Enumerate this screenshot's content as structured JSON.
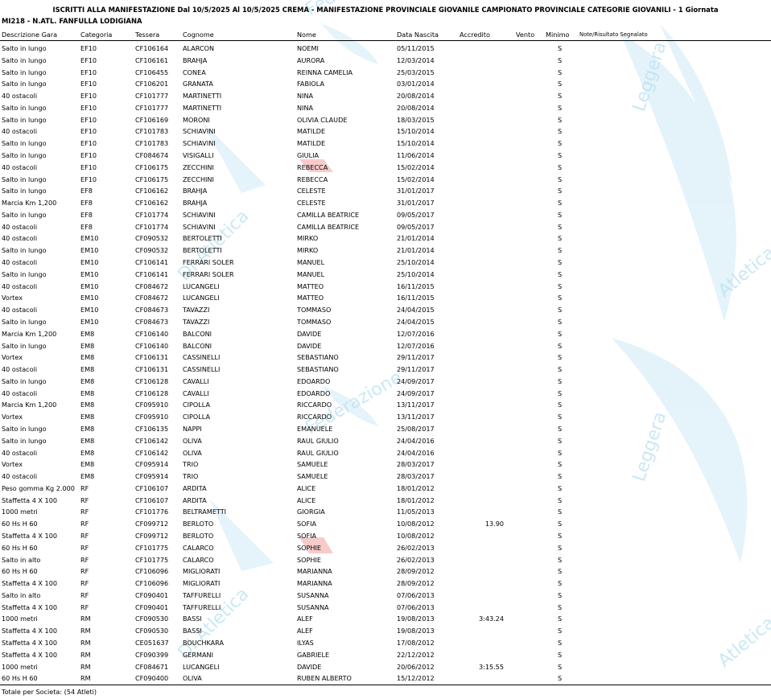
{
  "title": "ISCRITTI ALLA MANIFESTAZIONE Dal 10/5/2025 Al 10/5/2025 CREMA - MANIFESTAZIONE PROVINCIALE GIOVANILE CAMPIONATO PROVINCIALE CATEGORIE GIOVANILI - 1 Giornata",
  "club": "MI218 - N.ATL. FANFULLA LODIGIANA",
  "watermark_texts": [
    "Leggera",
    "Di Atletica",
    "Federazione",
    "Atletica",
    "Leggera",
    "Di Atletica",
    "Federazione",
    "Atletica"
  ],
  "columns": {
    "desc": "Descrizione Gara",
    "cat": "Categoria",
    "tess": "Tessera",
    "cogn": "Cognome",
    "nome": "Nome",
    "data": "Data Nascita",
    "accr": "Accredito",
    "vento": "Vento",
    "min": "Minimo",
    "note": "Note/Risultato Segnalato"
  },
  "rows": [
    {
      "desc": "Salto in lungo",
      "cat": "EF10",
      "tess": "CF106164",
      "cogn": "ALARCON",
      "nome": "NOEMI",
      "data": "05/11/2015",
      "accr": "",
      "vento": "",
      "min": "S"
    },
    {
      "desc": "Salto in lungo",
      "cat": "EF10",
      "tess": "CF106161",
      "cogn": "BRAHJA",
      "nome": "AURORA",
      "data": "12/03/2014",
      "accr": "",
      "vento": "",
      "min": "S"
    },
    {
      "desc": "Salto in lungo",
      "cat": "EF10",
      "tess": "CF106455",
      "cogn": "CONEA",
      "nome": "REINNA CAMELIA",
      "data": "25/03/2015",
      "accr": "",
      "vento": "",
      "min": "S"
    },
    {
      "desc": "Salto in lungo",
      "cat": "EF10",
      "tess": "CF106201",
      "cogn": "GRANATA",
      "nome": "FABIOLA",
      "data": "03/01/2014",
      "accr": "",
      "vento": "",
      "min": "S"
    },
    {
      "desc": "40 ostacoli",
      "cat": "EF10",
      "tess": "CF101777",
      "cogn": "MARTINETTI",
      "nome": "NINA",
      "data": "20/08/2014",
      "accr": "",
      "vento": "",
      "min": "S"
    },
    {
      "desc": "Salto in lungo",
      "cat": "EF10",
      "tess": "CF101777",
      "cogn": "MARTINETTI",
      "nome": "NINA",
      "data": "20/08/2014",
      "accr": "",
      "vento": "",
      "min": "S"
    },
    {
      "desc": "Salto in lungo",
      "cat": "EF10",
      "tess": "CF106169",
      "cogn": "MORONI",
      "nome": "OLIVIA CLAUDE",
      "data": "18/03/2015",
      "accr": "",
      "vento": "",
      "min": "S"
    },
    {
      "desc": "40 ostacoli",
      "cat": "EF10",
      "tess": "CF101783",
      "cogn": "SCHIAVINI",
      "nome": "MATILDE",
      "data": "15/10/2014",
      "accr": "",
      "vento": "",
      "min": "S"
    },
    {
      "desc": "Salto in lungo",
      "cat": "EF10",
      "tess": "CF101783",
      "cogn": "SCHIAVINI",
      "nome": "MATILDE",
      "data": "15/10/2014",
      "accr": "",
      "vento": "",
      "min": "S"
    },
    {
      "desc": "Salto in lungo",
      "cat": "EF10",
      "tess": "CF084674",
      "cogn": "VISIGALLI",
      "nome": "GIULIA",
      "data": "11/06/2014",
      "accr": "",
      "vento": "",
      "min": "S"
    },
    {
      "desc": "40 ostacoli",
      "cat": "EF10",
      "tess": "CF106175",
      "cogn": "ZECCHINI",
      "nome": "REBECCA",
      "data": "15/02/2014",
      "accr": "",
      "vento": "",
      "min": "S"
    },
    {
      "desc": "Salto in lungo",
      "cat": "EF10",
      "tess": "CF106175",
      "cogn": "ZECCHINI",
      "nome": "REBECCA",
      "data": "15/02/2014",
      "accr": "",
      "vento": "",
      "min": "S"
    },
    {
      "desc": "Salto in lungo",
      "cat": "EF8",
      "tess": "CF106162",
      "cogn": "BRAHJA",
      "nome": "CELESTE",
      "data": "31/01/2017",
      "accr": "",
      "vento": "",
      "min": "S"
    },
    {
      "desc": "Marcia Km 1,200",
      "cat": "EF8",
      "tess": "CF106162",
      "cogn": "BRAHJA",
      "nome": "CELESTE",
      "data": "31/01/2017",
      "accr": "",
      "vento": "",
      "min": "S"
    },
    {
      "desc": "Salto in lungo",
      "cat": "EF8",
      "tess": "CF101774",
      "cogn": "SCHIAVINI",
      "nome": "CAMILLA BEATRICE",
      "data": "09/05/2017",
      "accr": "",
      "vento": "",
      "min": "S"
    },
    {
      "desc": "40 ostacoli",
      "cat": "EF8",
      "tess": "CF101774",
      "cogn": "SCHIAVINI",
      "nome": "CAMILLA BEATRICE",
      "data": "09/05/2017",
      "accr": "",
      "vento": "",
      "min": "S"
    },
    {
      "desc": "40 ostacoli",
      "cat": "EM10",
      "tess": "CF090532",
      "cogn": "BERTOLETTI",
      "nome": "MIRKO",
      "data": "21/01/2014",
      "accr": "",
      "vento": "",
      "min": "S"
    },
    {
      "desc": "Salto in lungo",
      "cat": "EM10",
      "tess": "CF090532",
      "cogn": "BERTOLETTI",
      "nome": "MIRKO",
      "data": "21/01/2014",
      "accr": "",
      "vento": "",
      "min": "S"
    },
    {
      "desc": "40 ostacoli",
      "cat": "EM10",
      "tess": "CF106141",
      "cogn": "FERRARI SOLER",
      "nome": "MANUEL",
      "data": "25/10/2014",
      "accr": "",
      "vento": "",
      "min": "S"
    },
    {
      "desc": "Salto in lungo",
      "cat": "EM10",
      "tess": "CF106141",
      "cogn": "FERRARI SOLER",
      "nome": "MANUEL",
      "data": "25/10/2014",
      "accr": "",
      "vento": "",
      "min": "S"
    },
    {
      "desc": "40 ostacoli",
      "cat": "EM10",
      "tess": "CF084672",
      "cogn": "LUCANGELI",
      "nome": "MATTEO",
      "data": "16/11/2015",
      "accr": "",
      "vento": "",
      "min": "S"
    },
    {
      "desc": "Vortex",
      "cat": "EM10",
      "tess": "CF084672",
      "cogn": "LUCANGELI",
      "nome": "MATTEO",
      "data": "16/11/2015",
      "accr": "",
      "vento": "",
      "min": "S"
    },
    {
      "desc": "40 ostacoli",
      "cat": "EM10",
      "tess": "CF084673",
      "cogn": "TAVAZZI",
      "nome": "TOMMASO",
      "data": "24/04/2015",
      "accr": "",
      "vento": "",
      "min": "S"
    },
    {
      "desc": "Salto in lungo",
      "cat": "EM10",
      "tess": "CF084673",
      "cogn": "TAVAZZI",
      "nome": "TOMMASO",
      "data": "24/04/2015",
      "accr": "",
      "vento": "",
      "min": "S"
    },
    {
      "desc": "Marcia Km 1,200",
      "cat": "EM8",
      "tess": "CF106140",
      "cogn": "BALCONI",
      "nome": "DAVIDE",
      "data": "12/07/2016",
      "accr": "",
      "vento": "",
      "min": "S"
    },
    {
      "desc": "Salto in lungo",
      "cat": "EM8",
      "tess": "CF106140",
      "cogn": "BALCONI",
      "nome": "DAVIDE",
      "data": "12/07/2016",
      "accr": "",
      "vento": "",
      "min": "S"
    },
    {
      "desc": "Vortex",
      "cat": "EM8",
      "tess": "CF106131",
      "cogn": "CASSINELLI",
      "nome": "SEBASTIANO",
      "data": "29/11/2017",
      "accr": "",
      "vento": "",
      "min": "S"
    },
    {
      "desc": "40 ostacoli",
      "cat": "EM8",
      "tess": "CF106131",
      "cogn": "CASSINELLI",
      "nome": "SEBASTIANO",
      "data": "29/11/2017",
      "accr": "",
      "vento": "",
      "min": "S"
    },
    {
      "desc": "Salto in lungo",
      "cat": "EM8",
      "tess": "CF106128",
      "cogn": "CAVALLI",
      "nome": "EDOARDO",
      "data": "24/09/2017",
      "accr": "",
      "vento": "",
      "min": "S"
    },
    {
      "desc": "40 ostacoli",
      "cat": "EM8",
      "tess": "CF106128",
      "cogn": "CAVALLI",
      "nome": "EDOARDO",
      "data": "24/09/2017",
      "accr": "",
      "vento": "",
      "min": "S"
    },
    {
      "desc": "Marcia Km 1,200",
      "cat": "EM8",
      "tess": "CF095910",
      "cogn": "CIPOLLA",
      "nome": "RICCARDO",
      "data": "13/11/2017",
      "accr": "",
      "vento": "",
      "min": "S"
    },
    {
      "desc": "Vortex",
      "cat": "EM8",
      "tess": "CF095910",
      "cogn": "CIPOLLA",
      "nome": "RICCARDO",
      "data": "13/11/2017",
      "accr": "",
      "vento": "",
      "min": "S"
    },
    {
      "desc": "Salto in lungo",
      "cat": "EM8",
      "tess": "CF106135",
      "cogn": "NAPPI",
      "nome": "EMANUELE",
      "data": "25/08/2017",
      "accr": "",
      "vento": "",
      "min": "S"
    },
    {
      "desc": "Salto in lungo",
      "cat": "EM8",
      "tess": "CF106142",
      "cogn": "OLIVA",
      "nome": "RAUL GIULIO",
      "data": "24/04/2016",
      "accr": "",
      "vento": "",
      "min": "S"
    },
    {
      "desc": "40 ostacoli",
      "cat": "EM8",
      "tess": "CF106142",
      "cogn": "OLIVA",
      "nome": "RAUL GIULIO",
      "data": "24/04/2016",
      "accr": "",
      "vento": "",
      "min": "S"
    },
    {
      "desc": "Vortex",
      "cat": "EM8",
      "tess": "CF095914",
      "cogn": "TRIO",
      "nome": "SAMUELE",
      "data": "28/03/2017",
      "accr": "",
      "vento": "",
      "min": "S"
    },
    {
      "desc": "40 ostacoli",
      "cat": "EM8",
      "tess": "CF095914",
      "cogn": "TRIO",
      "nome": "SAMUELE",
      "data": "28/03/2017",
      "accr": "",
      "vento": "",
      "min": "S"
    },
    {
      "desc": "Peso gomma Kg 2.000",
      "cat": "RF",
      "tess": "CF106107",
      "cogn": "ARDITA",
      "nome": "ALICE",
      "data": "18/01/2012",
      "accr": "",
      "vento": "",
      "min": "S"
    },
    {
      "desc": "Staffetta 4 X 100",
      "cat": "RF",
      "tess": "CF106107",
      "cogn": "ARDITA",
      "nome": "ALICE",
      "data": "18/01/2012",
      "accr": "",
      "vento": "",
      "min": "S"
    },
    {
      "desc": "1000 metri",
      "cat": "RF",
      "tess": "CF101776",
      "cogn": "BELTRAMETTI",
      "nome": "GIORGIA",
      "data": "11/05/2013",
      "accr": "",
      "vento": "",
      "min": "S"
    },
    {
      "desc": "60 Hs H 60",
      "cat": "RF",
      "tess": "CF099712",
      "cogn": "BERLOTO",
      "nome": "SOFIA",
      "data": "10/08/2012",
      "accr": "13.90",
      "vento": "",
      "min": "S"
    },
    {
      "desc": "Staffetta 4 X 100",
      "cat": "RF",
      "tess": "CF099712",
      "cogn": "BERLOTO",
      "nome": "SOFIA",
      "data": "10/08/2012",
      "accr": "",
      "vento": "",
      "min": "S"
    },
    {
      "desc": "60 Hs H 60",
      "cat": "RF",
      "tess": "CF101775",
      "cogn": "CALARCO",
      "nome": "SOPHIE",
      "data": "26/02/2013",
      "accr": "",
      "vento": "",
      "min": "S"
    },
    {
      "desc": "Salto in alto",
      "cat": "RF",
      "tess": "CF101775",
      "cogn": "CALARCO",
      "nome": "SOPHIE",
      "data": "26/02/2013",
      "accr": "",
      "vento": "",
      "min": "S"
    },
    {
      "desc": "60 Hs H 60",
      "cat": "RF",
      "tess": "CF106096",
      "cogn": "MIGLIORATI",
      "nome": "MARIANNA",
      "data": "28/09/2012",
      "accr": "",
      "vento": "",
      "min": "S"
    },
    {
      "desc": "Staffetta 4 X 100",
      "cat": "RF",
      "tess": "CF106096",
      "cogn": "MIGLIORATI",
      "nome": "MARIANNA",
      "data": "28/09/2012",
      "accr": "",
      "vento": "",
      "min": "S"
    },
    {
      "desc": "Salto in alto",
      "cat": "RF",
      "tess": "CF090401",
      "cogn": "TAFFURELLI",
      "nome": "SUSANNA",
      "data": "07/06/2013",
      "accr": "",
      "vento": "",
      "min": "S"
    },
    {
      "desc": "Staffetta 4 X 100",
      "cat": "RF",
      "tess": "CF090401",
      "cogn": "TAFFURELLI",
      "nome": "SUSANNA",
      "data": "07/06/2013",
      "accr": "",
      "vento": "",
      "min": "S"
    },
    {
      "desc": "1000 metri",
      "cat": "RM",
      "tess": "CF090530",
      "cogn": "BASSI",
      "nome": "ALEF",
      "data": "19/08/2013",
      "accr": "3:43.24",
      "vento": "",
      "min": "S"
    },
    {
      "desc": "Staffetta 4 X 100",
      "cat": "RM",
      "tess": "CF090530",
      "cogn": "BASSI",
      "nome": "ALEF",
      "data": "19/08/2013",
      "accr": "",
      "vento": "",
      "min": "S"
    },
    {
      "desc": "Staffetta 4 X 100",
      "cat": "RM",
      "tess": "CE051637",
      "cogn": "BOUCHKARA",
      "nome": "ILYAS",
      "data": "17/08/2012",
      "accr": "",
      "vento": "",
      "min": "S"
    },
    {
      "desc": "Staffetta 4 X 100",
      "cat": "RM",
      "tess": "CF090399",
      "cogn": "GERMANI",
      "nome": "GABRIELE",
      "data": "22/12/2012",
      "accr": "",
      "vento": "",
      "min": "S"
    },
    {
      "desc": "1000 metri",
      "cat": "RM",
      "tess": "CF084671",
      "cogn": "LUCANGELI",
      "nome": "DAVIDE",
      "data": "20/06/2012",
      "accr": "3:15.55",
      "vento": "",
      "min": "S"
    },
    {
      "desc": "60 Hs H 60",
      "cat": "RM",
      "tess": "CF090400",
      "cogn": "OLIVA",
      "nome": "RUBEN ALBERTO",
      "data": "15/12/2012",
      "accr": "",
      "vento": "",
      "min": "S"
    }
  ],
  "footer": "Totale per Societa: (54 Atleti)",
  "colors": {
    "watermark": "#8fd0ea",
    "watermark_accent": "#f2a0a0"
  }
}
